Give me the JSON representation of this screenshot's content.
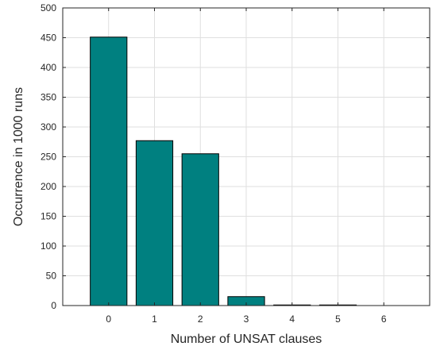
{
  "chart_data": {
    "type": "bar",
    "categories": [
      "0",
      "1",
      "2",
      "3",
      "4",
      "5",
      "6"
    ],
    "values": [
      451,
      277,
      255,
      15,
      1,
      1,
      0
    ],
    "title": "",
    "xlabel": "Number of UNSAT clauses",
    "ylabel": "Occurrence in 1000 runs",
    "xlim": [
      -1,
      7
    ],
    "ylim": [
      0,
      500
    ],
    "yticks": [
      0,
      50,
      100,
      150,
      200,
      250,
      300,
      350,
      400,
      450,
      500
    ],
    "grid": true,
    "legend": "none",
    "bar_color": "#008080",
    "bar_edge_color": "#000000"
  }
}
